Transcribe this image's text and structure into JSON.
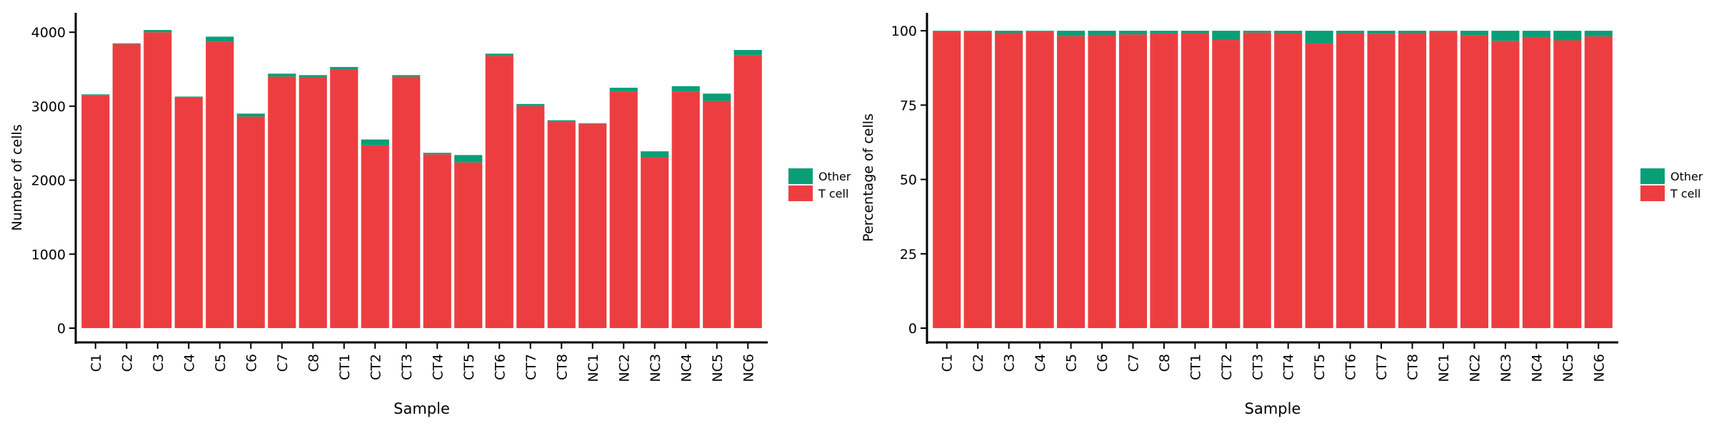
{
  "colors": {
    "t_cell": "#EC3E41",
    "other": "#0A9E76",
    "axis": "#000000",
    "background": "#ffffff"
  },
  "chart_data": [
    {
      "type": "bar",
      "stacked": true,
      "title": "",
      "xlabel": "Sample",
      "ylabel": "Number of cells",
      "ylim": [
        0,
        4100
      ],
      "yticks": [
        0,
        1000,
        2000,
        3000,
        4000
      ],
      "grid": false,
      "legend_position": "right",
      "legend": [
        "Other",
        "T cell"
      ],
      "categories": [
        "C1",
        "C2",
        "C3",
        "C4",
        "C5",
        "C6",
        "C7",
        "C8",
        "CT1",
        "CT2",
        "CT3",
        "CT4",
        "CT5",
        "CT6",
        "CT7",
        "CT8",
        "NC1",
        "NC2",
        "NC3",
        "NC4",
        "NC5",
        "NC6"
      ],
      "series": [
        {
          "name": "T cell",
          "color": "#EC3E41",
          "values": [
            3150,
            3840,
            4000,
            3120,
            3870,
            2860,
            3400,
            3390,
            3500,
            2470,
            3400,
            2350,
            2240,
            3680,
            3000,
            2790,
            2760,
            3200,
            2310,
            3200,
            3070,
            3690
          ]
        },
        {
          "name": "Other",
          "color": "#0A9E76",
          "values": [
            10,
            10,
            30,
            10,
            70,
            40,
            40,
            30,
            30,
            80,
            20,
            20,
            100,
            30,
            30,
            20,
            10,
            50,
            80,
            70,
            100,
            70
          ]
        }
      ]
    },
    {
      "type": "bar",
      "stacked": true,
      "title": "",
      "xlabel": "Sample",
      "ylabel": "Percentage of cells",
      "ylim": [
        0,
        102
      ],
      "yticks": [
        0,
        25,
        50,
        75,
        100
      ],
      "grid": false,
      "legend_position": "right",
      "legend": [
        "Other",
        "T cell"
      ],
      "categories": [
        "C1",
        "C2",
        "C3",
        "C4",
        "C5",
        "C6",
        "C7",
        "C8",
        "CT1",
        "CT2",
        "CT3",
        "CT4",
        "CT5",
        "CT6",
        "CT7",
        "CT8",
        "NC1",
        "NC2",
        "NC3",
        "NC4",
        "NC5",
        "NC6"
      ],
      "series": [
        {
          "name": "T cell",
          "color": "#EC3E41",
          "values": [
            99.7,
            99.7,
            99.3,
            99.7,
            98.2,
            98.6,
            98.8,
            99.1,
            99.2,
            96.9,
            99.4,
            99.2,
            95.7,
            99.2,
            99.0,
            99.3,
            99.6,
            98.5,
            96.6,
            97.9,
            96.8,
            98.1
          ]
        },
        {
          "name": "Other",
          "color": "#0A9E76",
          "values": [
            0.3,
            0.3,
            0.7,
            0.3,
            1.8,
            1.4,
            1.2,
            0.9,
            0.8,
            3.1,
            0.6,
            0.8,
            4.3,
            0.8,
            1.0,
            0.7,
            0.4,
            1.5,
            3.4,
            2.1,
            3.2,
            1.9
          ]
        }
      ]
    }
  ]
}
